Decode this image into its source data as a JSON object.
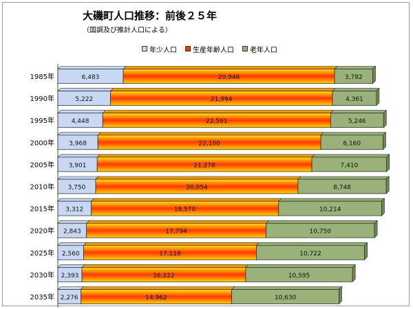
{
  "title": "大磯町人口推移：前後２５年",
  "subtitle": "（国調及び推計人口による）",
  "colors": {
    "young": "#c9d8f2",
    "working_top": "#ffe21a",
    "working_mid": "#ff3a00",
    "working_bottom": "#ffd200",
    "elderly": "#98b27a",
    "frame": "#9a9a9a"
  },
  "chart_data": {
    "type": "bar",
    "orientation": "horizontal",
    "stacked": true,
    "categories": [
      "1985年",
      "1990年",
      "1995年",
      "2000年",
      "2005年",
      "2010年",
      "2015年",
      "2020年",
      "2025年",
      "2030年",
      "2035年"
    ],
    "series": [
      {
        "name": "年少人口",
        "values": [
          6483,
          5222,
          4448,
          3968,
          3901,
          3750,
          3312,
          2843,
          2560,
          2393,
          2276
        ]
      },
      {
        "name": "生産年齢人口",
        "values": [
          20946,
          21994,
          22591,
          22100,
          21278,
          20054,
          18570,
          17794,
          17118,
          16222,
          14962
        ]
      },
      {
        "name": "老年人口",
        "values": [
          3782,
          4361,
          5246,
          6160,
          7410,
          8748,
          10214,
          10750,
          10722,
          10595,
          10630
        ]
      }
    ],
    "labels": [
      [
        "6,483",
        "20,946",
        "3,782"
      ],
      [
        "5,222",
        "21,994",
        "4,361"
      ],
      [
        "4,448",
        "22,591",
        "5,246"
      ],
      [
        "3,968",
        "22,100",
        "6,160"
      ],
      [
        "3,901",
        "21,278",
        "7,410"
      ],
      [
        "3,750",
        "20,054",
        "8,748"
      ],
      [
        "3,312",
        "18,570",
        "10,214"
      ],
      [
        "2,843",
        "17,794",
        "10,750"
      ],
      [
        "2,560",
        "17,118",
        "10,722"
      ],
      [
        "2,393",
        "16,222",
        "10,595"
      ],
      [
        "2,276",
        "14,962",
        "10,630"
      ]
    ],
    "xlim": [
      0,
      35000
    ],
    "legend_position": "top",
    "grid": false
  }
}
